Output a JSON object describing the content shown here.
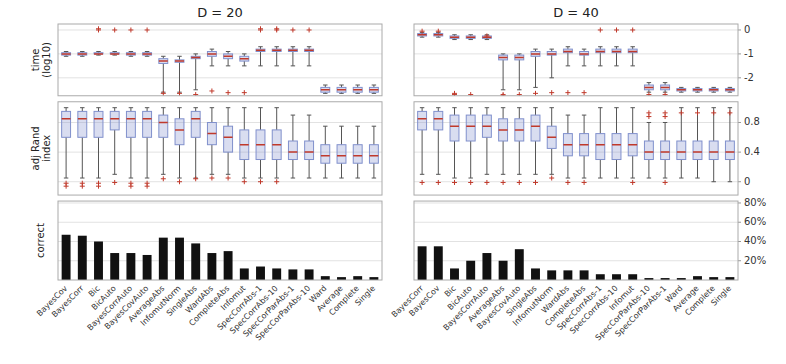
{
  "chart_data": [
    {
      "type": "box",
      "title": "D = 20",
      "y_label": "time\n(log10)",
      "medians": [
        -1.0,
        -1.0,
        -1.0,
        -1.0,
        -1.0,
        -1.0,
        -1.3,
        -1.3,
        -1.15,
        -1.0,
        -1.1,
        -1.2,
        -0.85,
        -0.85,
        -0.85,
        -0.85,
        -2.5,
        -2.5,
        -2.5,
        -2.5
      ],
      "q1": [
        -1.05,
        -1.05,
        -1.0,
        -1.0,
        -1.05,
        -1.05,
        -1.4,
        -1.35,
        -1.2,
        -1.1,
        -1.2,
        -1.3,
        -0.9,
        -0.9,
        -0.9,
        -0.9,
        -2.6,
        -2.6,
        -2.6,
        -2.6
      ],
      "q3": [
        -0.95,
        -0.95,
        -0.95,
        -0.95,
        -0.95,
        -0.95,
        -1.2,
        -1.25,
        -1.1,
        -0.9,
        -1.0,
        -1.1,
        -0.8,
        -0.8,
        -0.8,
        -0.8,
        -2.4,
        -2.4,
        -2.4,
        -2.4
      ],
      "whislo": [
        -1.1,
        -1.1,
        -1.05,
        -1.05,
        -1.1,
        -1.1,
        -2.6,
        -2.6,
        -2.5,
        -1.5,
        -1.5,
        -1.5,
        -1.5,
        -1.5,
        -1.5,
        -1.5,
        -2.65,
        -2.65,
        -2.65,
        -2.65
      ],
      "whishi": [
        -0.9,
        -0.9,
        -0.9,
        -0.9,
        -0.9,
        -0.9,
        -1.1,
        -1.1,
        -1.0,
        -0.8,
        -0.9,
        -1.0,
        -0.7,
        -0.7,
        -0.7,
        -0.7,
        -2.3,
        -2.3,
        -2.3,
        -2.3
      ],
      "fliers": [
        [],
        [],
        [
          0.05,
          0.0
        ],
        [
          0.0
        ],
        [
          0.0
        ],
        [
          0.0
        ],
        [
          -2.65
        ],
        [
          -2.65
        ],
        [
          -2.7
        ],
        [
          -2.55
        ],
        [
          -2.62
        ],
        [
          -2.62
        ],
        [
          0.0,
          0.05
        ],
        [
          0.0,
          0.05
        ],
        [
          0.0
        ],
        [
          0.0
        ],
        [],
        [],
        [],
        []
      ],
      "color": "#8090cc",
      "ylim": [
        -2.75,
        0.25
      ],
      "yticks": [
        -2,
        -1,
        0
      ],
      "grid": true,
      "tick_labels": false
    },
    {
      "type": "box",
      "title": "D = 40",
      "medians": [
        -0.2,
        -0.2,
        -0.3,
        -0.3,
        -0.3,
        -1.15,
        -1.15,
        -1.0,
        -1.0,
        -0.9,
        -1.0,
        -0.9,
        -0.9,
        -0.9,
        -2.4,
        -2.4,
        -2.5,
        -2.5,
        -2.5,
        -2.5
      ],
      "q1": [
        -0.25,
        -0.25,
        -0.35,
        -0.35,
        -0.35,
        -1.25,
        -1.25,
        -1.1,
        -1.05,
        -0.95,
        -1.05,
        -0.95,
        -0.95,
        -0.95,
        -2.5,
        -2.5,
        -2.55,
        -2.55,
        -2.55,
        -2.55
      ],
      "q3": [
        -0.15,
        -0.15,
        -0.25,
        -0.25,
        -0.25,
        -1.05,
        -1.05,
        -0.9,
        -0.9,
        -0.8,
        -0.9,
        -0.8,
        -0.8,
        -0.8,
        -2.3,
        -2.3,
        -2.45,
        -2.45,
        -2.45,
        -2.45
      ],
      "whislo": [
        -0.3,
        -0.3,
        -0.4,
        -0.4,
        -0.4,
        -2.5,
        -2.5,
        -2.4,
        -2.0,
        -1.5,
        -1.5,
        -1.5,
        -1.5,
        -1.5,
        -2.6,
        -2.6,
        -2.6,
        -2.6,
        -2.6,
        -2.6
      ],
      "whishi": [
        -0.1,
        -0.1,
        -0.2,
        -0.2,
        -0.2,
        -1.0,
        -1.0,
        -0.8,
        -0.8,
        -0.7,
        -0.8,
        -0.7,
        -0.7,
        -0.7,
        -2.2,
        -2.2,
        -2.4,
        -2.4,
        -2.4,
        -2.4
      ],
      "fliers": [
        [
          -0.05
        ],
        [
          -0.05
        ],
        [
          -2.65,
          -2.7
        ],
        [
          -2.7
        ],
        [
          -0.25
        ],
        [
          -2.7,
          -2.75
        ],
        [
          -2.7
        ],
        [
          -2.65
        ],
        [
          -2.62
        ],
        [
          -2.62
        ],
        [
          -2.62
        ],
        [
          0.0
        ],
        [
          0.0
        ],
        [
          0.0
        ],
        [
          -2.7
        ],
        [
          -2.7
        ],
        [],
        [],
        [],
        []
      ],
      "color": "#8090cc",
      "ylim": [
        -2.75,
        0.25
      ],
      "yticks": [
        -2,
        -1,
        0
      ],
      "grid": true,
      "tick_labels": "y"
    },
    {
      "type": "box",
      "y_label": "adj Rand\nindex",
      "medians": [
        0.85,
        0.85,
        0.85,
        0.85,
        0.85,
        0.85,
        0.8,
        0.7,
        0.85,
        0.65,
        0.6,
        0.5,
        0.5,
        0.5,
        0.4,
        0.4,
        0.35,
        0.35,
        0.35,
        0.35
      ],
      "q1": [
        0.6,
        0.6,
        0.6,
        0.7,
        0.6,
        0.6,
        0.6,
        0.5,
        0.6,
        0.5,
        0.4,
        0.3,
        0.3,
        0.3,
        0.3,
        0.3,
        0.25,
        0.25,
        0.25,
        0.25
      ],
      "q3": [
        0.95,
        0.95,
        0.95,
        0.95,
        0.95,
        0.95,
        0.9,
        0.85,
        0.95,
        0.8,
        0.75,
        0.7,
        0.7,
        0.7,
        0.55,
        0.55,
        0.5,
        0.5,
        0.5,
        0.5
      ],
      "whislo": [
        0.05,
        0.05,
        0.05,
        0.1,
        0.05,
        0.05,
        0.1,
        0.05,
        0.05,
        0.1,
        0.1,
        0.05,
        0.05,
        0.05,
        0.05,
        0.05,
        0.05,
        0.05,
        0.05,
        0.05
      ],
      "whishi": [
        1.0,
        1.0,
        1.0,
        1.0,
        1.0,
        1.0,
        1.0,
        1.0,
        1.0,
        1.0,
        1.0,
        1.0,
        1.0,
        1.0,
        0.9,
        0.9,
        0.75,
        0.75,
        0.75,
        0.75
      ],
      "fliers": [
        [
          -0.02,
          -0.06
        ],
        [
          -0.02,
          -0.06
        ],
        [
          -0.02,
          -0.06
        ],
        [
          -0.01
        ],
        [
          -0.02,
          -0.06
        ],
        [
          -0.02,
          -0.06
        ],
        [
          0.04
        ],
        [
          0.0
        ],
        [
          0.04
        ],
        [
          0.05
        ],
        [
          0.05
        ],
        [
          0.0
        ],
        [
          0.0
        ],
        [
          0.0
        ],
        [],
        [],
        [],
        [],
        [],
        []
      ],
      "color": "#8090cc",
      "ylim": [
        -0.18,
        1.08
      ],
      "yticks": [
        0,
        0.4,
        0.8
      ],
      "grid": true,
      "tick_labels": false
    },
    {
      "type": "box",
      "medians": [
        0.85,
        0.85,
        0.75,
        0.75,
        0.75,
        0.7,
        0.7,
        0.75,
        0.6,
        0.5,
        0.5,
        0.5,
        0.5,
        0.5,
        0.4,
        0.4,
        0.4,
        0.4,
        0.4,
        0.4
      ],
      "q1": [
        0.7,
        0.7,
        0.55,
        0.55,
        0.6,
        0.55,
        0.55,
        0.55,
        0.45,
        0.35,
        0.35,
        0.3,
        0.3,
        0.35,
        0.3,
        0.3,
        0.3,
        0.3,
        0.3,
        0.3
      ],
      "q3": [
        0.95,
        0.95,
        0.9,
        0.9,
        0.9,
        0.85,
        0.85,
        0.9,
        0.75,
        0.65,
        0.65,
        0.65,
        0.65,
        0.65,
        0.55,
        0.55,
        0.55,
        0.55,
        0.55,
        0.55
      ],
      "whislo": [
        0.1,
        0.1,
        0.05,
        0.05,
        0.1,
        0.1,
        0.1,
        0.1,
        0.1,
        0.05,
        0.05,
        0.05,
        0.05,
        0.05,
        0.05,
        0.05,
        0.05,
        0.05,
        0.0,
        0.0
      ],
      "whishi": [
        1.0,
        1.0,
        1.0,
        1.0,
        1.0,
        1.0,
        1.0,
        1.0,
        1.0,
        0.9,
        0.9,
        1.0,
        1.0,
        1.0,
        0.8,
        0.8,
        1.0,
        1.0,
        1.0,
        1.0
      ],
      "fliers": [
        [
          -0.01
        ],
        [
          -0.01
        ],
        [
          -0.01
        ],
        [
          -0.01
        ],
        [
          -0.01
        ],
        [
          -0.01
        ],
        [
          -0.01
        ],
        [
          -0.01
        ],
        [
          0.05
        ],
        [
          -0.01
        ],
        [
          -0.01
        ],
        [],
        [],
        [
          -0.01
        ],
        [
          0.88,
          0.93
        ],
        [
          0.88,
          0.93,
          -0.01
        ],
        [
          0.93
        ],
        [
          0.93
        ],
        [
          0.93
        ],
        [
          0.93
        ]
      ],
      "color": "#8090cc",
      "ylim": [
        -0.18,
        1.08
      ],
      "yticks": [
        0,
        0.4,
        0.8
      ],
      "grid": true,
      "tick_labels": "y"
    },
    {
      "type": "bar",
      "y_label": "correct",
      "categories": [
        "BayesCov",
        "BayesCorr",
        "Bic",
        "BicAuto",
        "BayesCorrAuto",
        "BayesCovAuto",
        "AverageAbs",
        "InfomutNorm",
        "SingleAbs",
        "WardAbs",
        "CompleteAbs",
        "Infomut",
        "SpecCorrAbs-1",
        "SpecCorrAbs-10",
        "SpecCorParAbs-1",
        "SpecCorParAbs-10",
        "Ward",
        "Average",
        "Complete",
        "Single"
      ],
      "values": [
        0.47,
        0.46,
        0.4,
        0.28,
        0.28,
        0.26,
        0.44,
        0.44,
        0.38,
        0.28,
        0.3,
        0.12,
        0.14,
        0.12,
        0.11,
        0.11,
        0.04,
        0.03,
        0.04,
        0.03
      ],
      "color": "#111111",
      "ylim": [
        0,
        0.82
      ],
      "yticks": [
        {
          "value": 0.2,
          "label": "20%"
        },
        {
          "value": 0.4,
          "label": "40%"
        },
        {
          "value": 0.6,
          "label": "60%"
        },
        {
          "value": 0.8,
          "label": "80%"
        }
      ],
      "grid": true,
      "tick_labels": "x"
    },
    {
      "type": "bar",
      "categories": [
        "BayesCorr",
        "BayesCov",
        "Bic",
        "BicAuto",
        "BayesCorrAuto",
        "AverageAbs",
        "BayesCovAuto",
        "SingleAbs",
        "InfomutNorm",
        "WardAbs",
        "CompleteAbs",
        "SpecCorrAbs-1",
        "SpecCorrAbs-10",
        "Infomut",
        "SpecCorParAbs-10",
        "SpecCorParAbs-1",
        "Ward",
        "Average",
        "Complete",
        "Single"
      ],
      "values": [
        0.35,
        0.35,
        0.12,
        0.2,
        0.28,
        0.2,
        0.32,
        0.12,
        0.1,
        0.1,
        0.1,
        0.06,
        0.06,
        0.06,
        0.02,
        0.02,
        0.02,
        0.04,
        0.03,
        0.03
      ],
      "color": "#111111",
      "ylim": [
        0,
        0.82
      ],
      "yticks": [
        {
          "value": 0.2,
          "label": "20%"
        },
        {
          "value": 0.4,
          "label": "40%"
        },
        {
          "value": 0.6,
          "label": "60%"
        },
        {
          "value": 0.8,
          "label": "80%"
        }
      ],
      "grid": true
    }
  ]
}
